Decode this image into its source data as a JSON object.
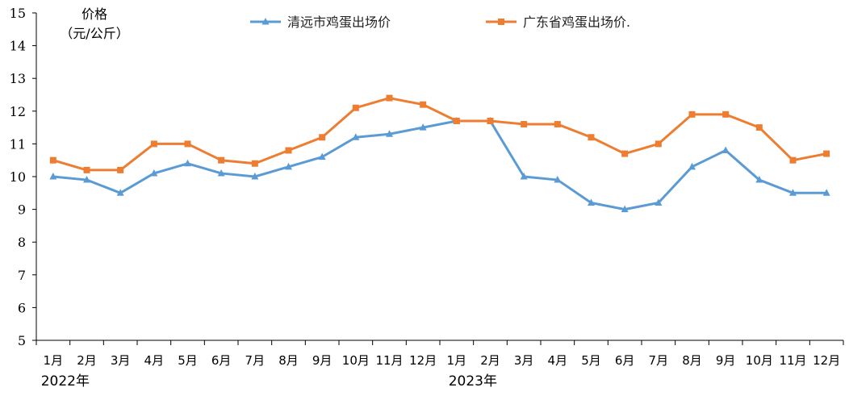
{
  "chart_data": {
    "type": "line",
    "ylabel_lines": [
      "价格",
      "（元/公斤）"
    ],
    "categories": [
      "1月",
      "2月",
      "3月",
      "4月",
      "5月",
      "6月",
      "7月",
      "8月",
      "9月",
      "10月",
      "11月",
      "12月",
      "1月",
      "2月",
      "3月",
      "4月",
      "5月",
      "6月",
      "7月",
      "8月",
      "9月",
      "10月",
      "11月",
      "12月"
    ],
    "years": [
      {
        "label": "2022年",
        "start_index": 0
      },
      {
        "label": "2023年",
        "start_index": 12
      }
    ],
    "ylim": [
      5,
      15
    ],
    "yticks": [
      5,
      6,
      7,
      8,
      9,
      10,
      11,
      12,
      13,
      14,
      15
    ],
    "grid": false,
    "legend_position": "top",
    "series": [
      {
        "name": "清远市鸡蛋出场价",
        "color": "#5B9BD5",
        "marker": "triangle",
        "values": [
          10.0,
          9.9,
          9.5,
          10.1,
          10.4,
          10.1,
          10.0,
          10.3,
          10.6,
          11.2,
          11.3,
          11.5,
          11.7,
          11.7,
          10.0,
          9.9,
          9.2,
          9.0,
          9.2,
          10.3,
          10.8,
          9.9,
          9.5,
          9.5
        ]
      },
      {
        "name": "广东省鸡蛋出场价.",
        "color": "#ED7D31",
        "marker": "square",
        "values": [
          10.5,
          10.2,
          10.2,
          11.0,
          11.0,
          10.5,
          10.4,
          10.8,
          11.2,
          12.1,
          12.4,
          12.2,
          11.7,
          11.7,
          11.6,
          11.6,
          11.2,
          10.7,
          11.0,
          11.9,
          11.9,
          11.5,
          10.5,
          10.7
        ]
      }
    ]
  }
}
